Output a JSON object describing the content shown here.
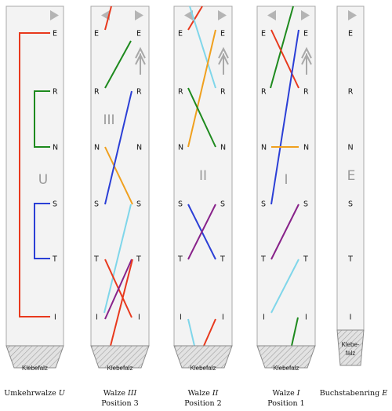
{
  "letters": [
    "E",
    "R",
    "N",
    "S",
    "T",
    "I"
  ],
  "colors": {
    "red": "#e8391d",
    "green": "#1e8a1e",
    "blue": "#2b3fd6",
    "orange": "#f0a01e",
    "cyan": "#7fd6ea",
    "purple": "#88228a"
  },
  "strips": [
    {
      "id": "umkehrwalze",
      "big_label": "U",
      "glue_label": "Klebefalz",
      "caption_line1": "Umkehrwalze ",
      "caption_italic": "U",
      "caption_line2": ""
    },
    {
      "id": "walze-3",
      "big_label": "III",
      "glue_label": "Klebefalz",
      "caption_line1": "Walze ",
      "caption_italic": "III",
      "caption_line2": "Position 3"
    },
    {
      "id": "walze-2",
      "big_label": "II",
      "glue_label": "Klebefalz",
      "caption_line1": "Walze ",
      "caption_italic": "II",
      "caption_line2": "Position 2"
    },
    {
      "id": "walze-1",
      "big_label": "I",
      "glue_label": "Klebefalz",
      "caption_line1": "Walze ",
      "caption_italic": "I",
      "caption_line2": "Position 1"
    },
    {
      "id": "buchstabenring",
      "big_label": "E",
      "glue_label_1": "Klebe-",
      "glue_label_2": "falz",
      "caption_line1": "Buchstabenring ",
      "caption_italic": "E",
      "caption_line2": ""
    }
  ]
}
